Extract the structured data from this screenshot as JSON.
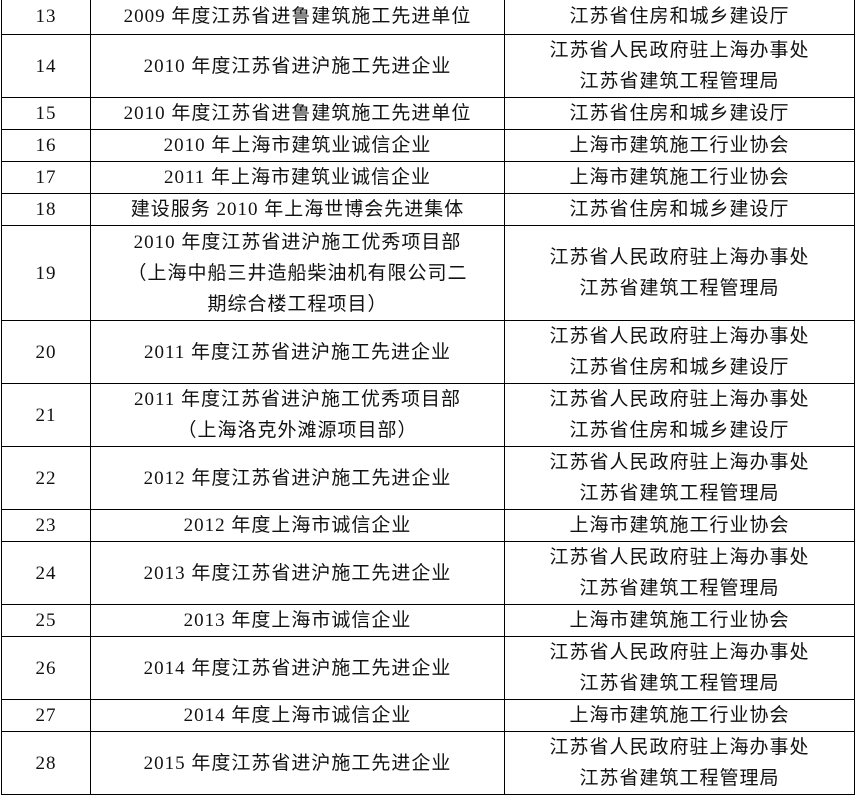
{
  "rows": [
    {
      "no": "13",
      "award": [
        "2009 年度江苏省进鲁建筑施工先进单位"
      ],
      "issuer": [
        "江苏省住房和城乡建设厅"
      ]
    },
    {
      "no": "14",
      "award": [
        "2010 年度江苏省进沪施工先进企业"
      ],
      "issuer": [
        "江苏省人民政府驻上海办事处",
        "江苏省建筑工程管理局"
      ]
    },
    {
      "no": "15",
      "award": [
        "2010 年度江苏省进鲁建筑施工先进单位"
      ],
      "issuer": [
        "江苏省住房和城乡建设厅"
      ]
    },
    {
      "no": "16",
      "award": [
        "2010 年上海市建筑业诚信企业"
      ],
      "issuer": [
        "上海市建筑施工行业协会"
      ]
    },
    {
      "no": "17",
      "award": [
        "2011 年上海市建筑业诚信企业"
      ],
      "issuer": [
        "上海市建筑施工行业协会"
      ]
    },
    {
      "no": "18",
      "award": [
        "建设服务 2010 年上海世博会先进集体"
      ],
      "issuer": [
        "江苏省住房和城乡建设厅"
      ]
    },
    {
      "no": "19",
      "award": [
        "2010 年度江苏省进沪施工优秀项目部",
        "（上海中船三井造船柴油机有限公司二",
        "期综合楼工程项目）"
      ],
      "issuer": [
        "江苏省人民政府驻上海办事处",
        "江苏省建筑工程管理局"
      ]
    },
    {
      "no": "20",
      "award": [
        "2011 年度江苏省进沪施工先进企业"
      ],
      "issuer": [
        "江苏省人民政府驻上海办事处",
        "江苏省住房和城乡建设厅"
      ]
    },
    {
      "no": "21",
      "award": [
        "2011 年度江苏省进沪施工优秀项目部",
        "（上海洛克外滩源项目部）"
      ],
      "issuer": [
        "江苏省人民政府驻上海办事处",
        "江苏省住房和城乡建设厅"
      ]
    },
    {
      "no": "22",
      "award": [
        "2012 年度江苏省进沪施工先进企业"
      ],
      "issuer": [
        "江苏省人民政府驻上海办事处",
        "江苏省建筑工程管理局"
      ]
    },
    {
      "no": "23",
      "award": [
        "2012 年度上海市诚信企业"
      ],
      "issuer": [
        "上海市建筑施工行业协会"
      ]
    },
    {
      "no": "24",
      "award": [
        "2013 年度江苏省进沪施工先进企业"
      ],
      "issuer": [
        "江苏省人民政府驻上海办事处",
        "江苏省建筑工程管理局"
      ]
    },
    {
      "no": "25",
      "award": [
        "2013 年度上海市诚信企业"
      ],
      "issuer": [
        "上海市建筑施工行业协会"
      ]
    },
    {
      "no": "26",
      "award": [
        "2014 年度江苏省进沪施工先进企业"
      ],
      "issuer": [
        "江苏省人民政府驻上海办事处",
        "江苏省建筑工程管理局"
      ]
    },
    {
      "no": "27",
      "award": [
        "2014 年度上海市诚信企业"
      ],
      "issuer": [
        "上海市建筑施工行业协会"
      ]
    },
    {
      "no": "28",
      "award": [
        "2015 年度江苏省进沪施工先进企业"
      ],
      "issuer": [
        "江苏省人民政府驻上海办事处",
        "江苏省建筑工程管理局"
      ]
    }
  ]
}
